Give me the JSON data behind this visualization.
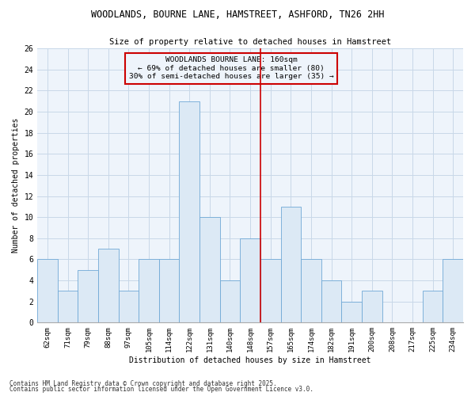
{
  "title": "WOODLANDS, BOURNE LANE, HAMSTREET, ASHFORD, TN26 2HH",
  "subtitle": "Size of property relative to detached houses in Hamstreet",
  "xlabel": "Distribution of detached houses by size in Hamstreet",
  "ylabel": "Number of detached properties",
  "footnote1": "Contains HM Land Registry data © Crown copyright and database right 2025.",
  "footnote2": "Contains public sector information licensed under the Open Government Licence v3.0.",
  "categories": [
    "62sqm",
    "71sqm",
    "79sqm",
    "88sqm",
    "97sqm",
    "105sqm",
    "114sqm",
    "122sqm",
    "131sqm",
    "140sqm",
    "148sqm",
    "157sqm",
    "165sqm",
    "174sqm",
    "182sqm",
    "191sqm",
    "200sqm",
    "208sqm",
    "217sqm",
    "225sqm",
    "234sqm"
  ],
  "values": [
    6,
    3,
    5,
    7,
    3,
    6,
    6,
    21,
    10,
    4,
    8,
    6,
    11,
    6,
    4,
    2,
    3,
    0,
    0,
    3,
    6
  ],
  "bar_color": "#dce9f5",
  "bar_edge_color": "#6fa8d6",
  "grid_color": "#c8d8e8",
  "bg_color": "#eef4fb",
  "fig_bg_color": "#ffffff",
  "vline_x_index": 11,
  "vline_color": "#cc0000",
  "annotation_text": "WOODLANDS BOURNE LANE: 160sqm\n← 69% of detached houses are smaller (80)\n30% of semi-detached houses are larger (35) →",
  "annotation_box_color": "#cc0000",
  "ylim": [
    0,
    26
  ],
  "yticks": [
    0,
    2,
    4,
    6,
    8,
    10,
    12,
    14,
    16,
    18,
    20,
    22,
    24,
    26
  ]
}
